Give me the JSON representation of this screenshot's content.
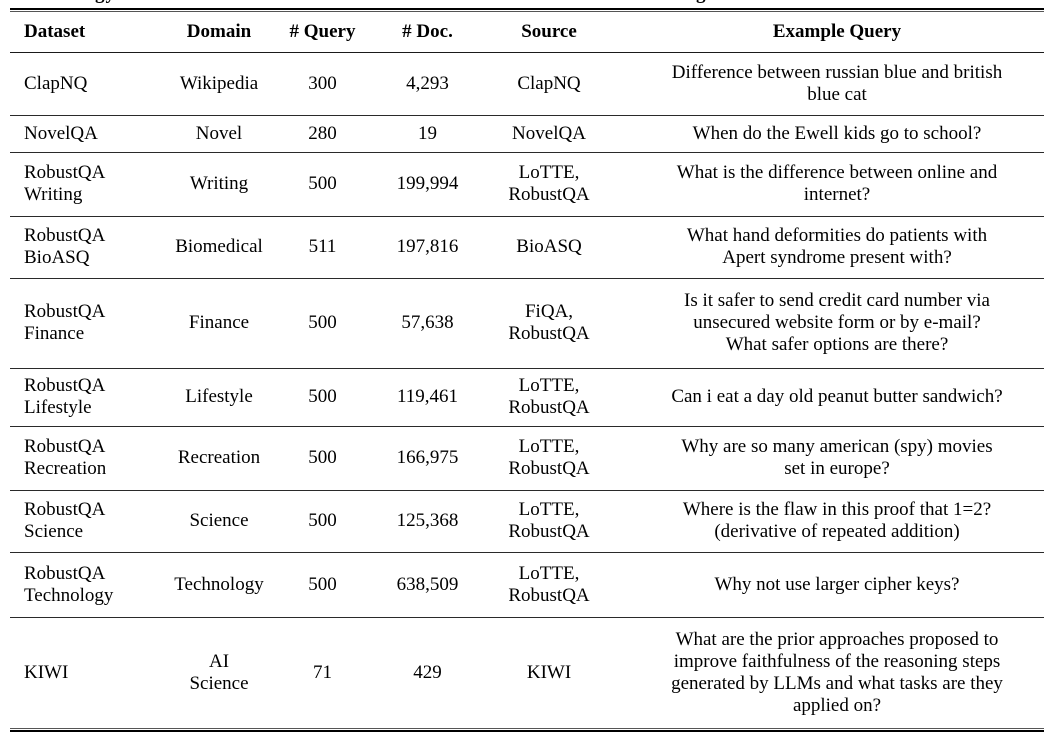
{
  "caption_fragments": {
    "left": "gy",
    "right": "g"
  },
  "table": {
    "headers": {
      "dataset": "Dataset",
      "domain": "Domain",
      "num_query": "# Query",
      "num_doc": "# Doc.",
      "source": "Source",
      "example_query": "Example Query"
    },
    "rows": [
      {
        "dataset": "ClapNQ",
        "domain": "Wikipedia",
        "num_query": "300",
        "num_doc": "4,293",
        "source": "ClapNQ",
        "example_query": "Difference between russian blue and british\nblue cat"
      },
      {
        "dataset": "NovelQA",
        "domain": "Novel",
        "num_query": "280",
        "num_doc": "19",
        "source": "NovelQA",
        "example_query": "When do the Ewell kids go to school?"
      },
      {
        "dataset": "RobustQA\nWriting",
        "domain": "Writing",
        "num_query": "500",
        "num_doc": "199,994",
        "source": "LoTTE,\nRobustQA",
        "example_query": "What is the difference between online and\ninternet?"
      },
      {
        "dataset": "RobustQA\nBioASQ",
        "domain": "Biomedical",
        "num_query": "511",
        "num_doc": "197,816",
        "source": "BioASQ",
        "example_query": "What hand deformities do patients with\nApert syndrome present with?"
      },
      {
        "dataset": "RobustQA\nFinance",
        "domain": "Finance",
        "num_query": "500",
        "num_doc": "57,638",
        "source": "FiQA,\nRobustQA",
        "example_query": "Is it safer to send credit card number via\nunsecured website form or by e-mail?\nWhat safer options are there?"
      },
      {
        "dataset": "RobustQA\nLifestyle",
        "domain": "Lifestyle",
        "num_query": "500",
        "num_doc": "119,461",
        "source": "LoTTE,\nRobustQA",
        "example_query": "Can i eat a day old peanut butter sandwich?"
      },
      {
        "dataset": "RobustQA\nRecreation",
        "domain": "Recreation",
        "num_query": "500",
        "num_doc": "166,975",
        "source": "LoTTE,\nRobustQA",
        "example_query": "Why are so many american (spy) movies\nset in europe?"
      },
      {
        "dataset": "RobustQA\nScience",
        "domain": "Science",
        "num_query": "500",
        "num_doc": "125,368",
        "source": "LoTTE,\nRobustQA",
        "example_query": "Where is the flaw in this proof that 1=2?\n(derivative of repeated addition)"
      },
      {
        "dataset": "RobustQA\nTechnology",
        "domain": "Technology",
        "num_query": "500",
        "num_doc": "638,509",
        "source": "LoTTE,\nRobustQA",
        "example_query": "Why not use larger cipher keys?"
      },
      {
        "dataset": "KIWI",
        "domain": "AI\nScience",
        "num_query": "71",
        "num_doc": "429",
        "source": "KIWI",
        "example_query": "What are the prior approaches proposed to\nimprove faithfulness of the reasoning steps\ngenerated by LLMs and what tasks are they\napplied on?"
      }
    ]
  }
}
